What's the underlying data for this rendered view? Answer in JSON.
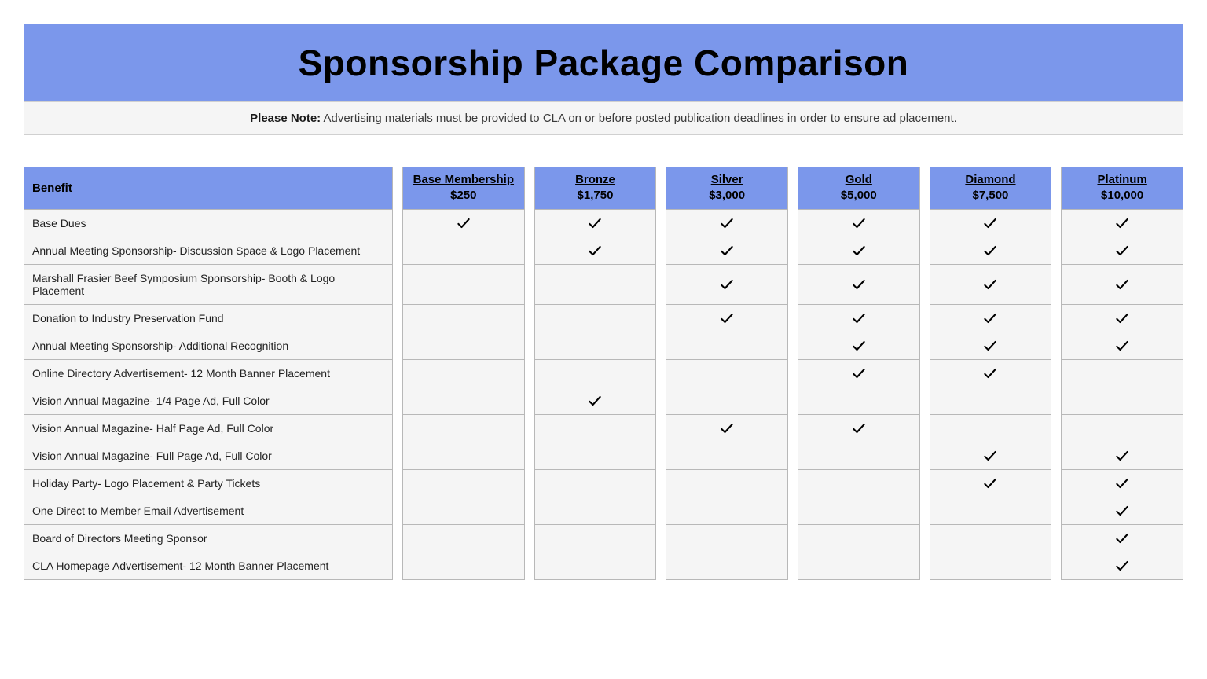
{
  "colors": {
    "banner_bg": "#7b97eb",
    "panel_bg": "#f5f5f5",
    "border": "#b8b8b8",
    "text": "#222222",
    "title_text": "#000000"
  },
  "title": "Sponsorship Package Comparison",
  "note_label": "Please Note:",
  "note_text": " Advertising materials must be provided to CLA on or before posted publication deadlines in order to ensure ad placement.",
  "benefit_header": "Benefit",
  "tiers": [
    {
      "name": "Base Membership",
      "price": "$250"
    },
    {
      "name": "Bronze",
      "price": "$1,750"
    },
    {
      "name": "Silver",
      "price": "$3,000"
    },
    {
      "name": "Gold",
      "price": "$5,000"
    },
    {
      "name": "Diamond",
      "price": "$7,500"
    },
    {
      "name": "Platinum",
      "price": "$10,000"
    }
  ],
  "benefits": [
    {
      "label": "Base Dues",
      "checks": [
        true,
        true,
        true,
        true,
        true,
        true
      ]
    },
    {
      "label": "Annual Meeting Sponsorship- Discussion Space & Logo Placement",
      "checks": [
        false,
        true,
        true,
        true,
        true,
        true
      ]
    },
    {
      "label": "Marshall Frasier Beef Symposium Sponsorship- Booth & Logo Placement",
      "checks": [
        false,
        false,
        true,
        true,
        true,
        true
      ]
    },
    {
      "label": "Donation to Industry Preservation Fund",
      "checks": [
        false,
        false,
        true,
        true,
        true,
        true
      ]
    },
    {
      "label": "Annual Meeting Sponsorship- Additional Recognition",
      "checks": [
        false,
        false,
        false,
        true,
        true,
        true
      ]
    },
    {
      "label": "Online Directory Advertisement- 12 Month Banner Placement",
      "checks": [
        false,
        false,
        false,
        true,
        true,
        false
      ]
    },
    {
      "label": "Vision Annual Magazine- 1/4 Page Ad, Full Color",
      "checks": [
        false,
        true,
        false,
        false,
        false,
        false
      ]
    },
    {
      "label": "Vision Annual Magazine- Half Page Ad, Full Color",
      "checks": [
        false,
        false,
        true,
        true,
        false,
        false
      ]
    },
    {
      "label": "Vision Annual Magazine- Full Page Ad, Full Color",
      "checks": [
        false,
        false,
        false,
        false,
        true,
        true
      ]
    },
    {
      "label": "Holiday Party- Logo Placement & Party Tickets",
      "checks": [
        false,
        false,
        false,
        false,
        true,
        true
      ]
    },
    {
      "label": "One Direct to Member Email Advertisement",
      "checks": [
        false,
        false,
        false,
        false,
        false,
        true
      ]
    },
    {
      "label": "Board of Directors Meeting Sponsor",
      "checks": [
        false,
        false,
        false,
        false,
        false,
        true
      ]
    },
    {
      "label": "CLA Homepage Advertisement- 12 Month Banner Placement",
      "checks": [
        false,
        false,
        false,
        false,
        false,
        true
      ]
    }
  ]
}
